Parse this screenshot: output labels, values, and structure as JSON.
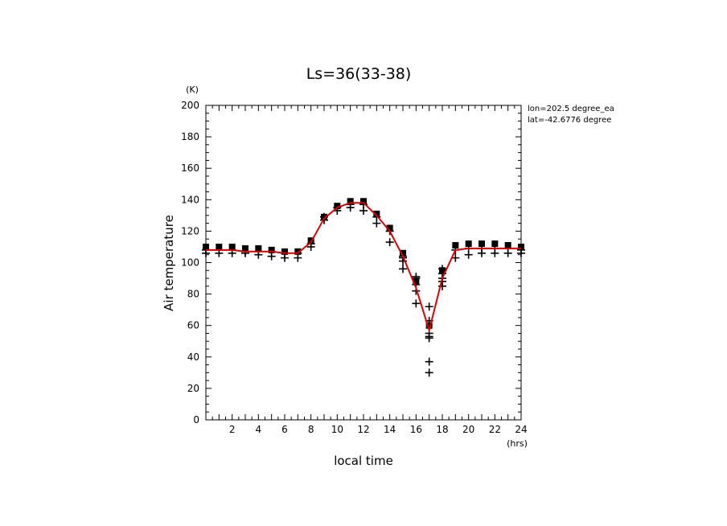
{
  "chart_data": {
    "type": "scatter",
    "title": "Ls=36(33-38)",
    "xlabel": "local time",
    "ylabel": "Air temperature",
    "x_unit": "(hrs)",
    "y_unit": "(K)",
    "xlim": [
      0,
      24
    ],
    "ylim": [
      0,
      200
    ],
    "x_ticks": [
      2,
      4,
      6,
      8,
      10,
      12,
      14,
      16,
      18,
      20,
      22,
      24
    ],
    "y_ticks": [
      0,
      20,
      40,
      60,
      80,
      100,
      120,
      140,
      160,
      180,
      200
    ],
    "annotations": [
      "lon=202.5 degree_ea",
      "lat=-42.6776 degree"
    ],
    "grid": false,
    "colors": {
      "mean_line": "#e00000",
      "observations": "#000000"
    },
    "series": [
      {
        "marker": "square",
        "x": [
          0,
          1,
          2,
          3,
          4,
          5,
          6,
          7,
          8,
          9,
          10,
          11,
          12,
          13,
          14,
          15,
          16,
          17,
          18,
          19,
          20,
          21,
          22,
          23,
          24
        ],
        "y": [
          110,
          110,
          110,
          109,
          109,
          108,
          107,
          107,
          114,
          129,
          136,
          139,
          139,
          131,
          122,
          106,
          88,
          60,
          95,
          111,
          112,
          112,
          112,
          111,
          110
        ]
      },
      {
        "marker": "plus",
        "x": [
          0,
          1,
          2,
          3,
          4,
          5,
          6,
          7,
          8,
          9,
          10,
          11,
          12,
          13,
          14,
          15,
          16,
          17,
          18,
          19,
          20,
          21,
          22,
          23,
          24,
          0,
          1,
          2,
          3,
          4,
          5,
          6,
          7,
          8,
          9,
          10,
          11,
          12,
          13,
          14,
          15,
          16,
          17,
          18,
          19,
          20,
          21,
          22,
          23,
          24,
          15,
          15,
          16,
          16,
          16,
          17,
          17,
          17,
          17,
          17,
          18,
          18,
          18
        ],
        "y": [
          106,
          106,
          106,
          106,
          105,
          104,
          103,
          103,
          110,
          127,
          133,
          135,
          133,
          125,
          113,
          96,
          74,
          30,
          85,
          103,
          105,
          106,
          106,
          106,
          106,
          108,
          108,
          108,
          107,
          107,
          107,
          106,
          106,
          112,
          129,
          135,
          137,
          137,
          129,
          120,
          103,
          82,
          53,
          88,
          108,
          109,
          109,
          109,
          109,
          108,
          101,
          104,
          86,
          90,
          91,
          37,
          52,
          55,
          63,
          72,
          90,
          93,
          96
        ]
      },
      {
        "marker": "line",
        "x": [
          0,
          1,
          2,
          3,
          4,
          5,
          6,
          7,
          8,
          9,
          10,
          11,
          12,
          13,
          14,
          15,
          16,
          17,
          18,
          19,
          20,
          21,
          22,
          23,
          24
        ],
        "y": [
          108,
          108,
          108,
          107,
          107,
          107,
          106,
          106,
          113,
          128,
          135,
          138,
          138,
          130,
          120,
          104,
          84,
          57,
          90,
          108,
          109,
          109,
          109,
          109,
          109
        ]
      }
    ]
  }
}
